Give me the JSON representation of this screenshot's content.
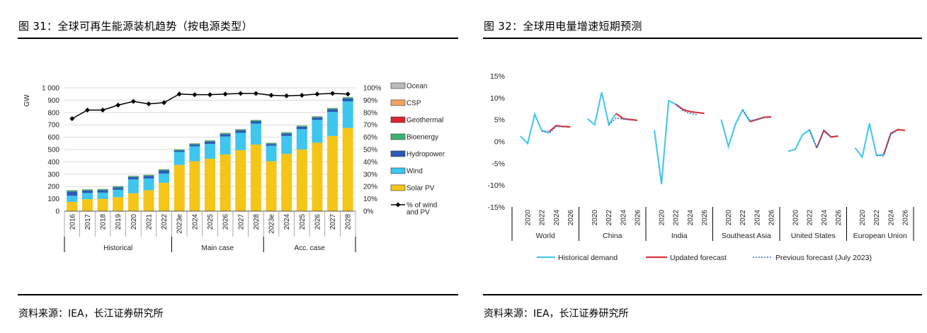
{
  "left": {
    "title": "图 31：全球可再生能源装机趋势（按电源类型）",
    "source": "资料来源：IEA，长江证券研究所"
  },
  "right": {
    "title": "图 32：全球用电量增速短期预测",
    "source": "资料来源：IEA，长江证券研究所"
  },
  "chart_data": [
    {
      "type": "bar",
      "stacked": true,
      "title": "",
      "ylabel": "GW",
      "ylim": [
        0,
        1000
      ],
      "yticks": [
        "0",
        "100",
        "200",
        "300",
        "400",
        "500",
        "600",
        "700",
        "800",
        "900",
        "1 000"
      ],
      "y2lim": [
        0,
        100
      ],
      "y2ticks": [
        "0%",
        "10%",
        "20%",
        "30%",
        "40%",
        "50%",
        "60%",
        "70%",
        "80%",
        "90%",
        "100%"
      ],
      "categories": [
        "2016",
        "2017",
        "2018",
        "2019",
        "2020",
        "2021",
        "2022",
        "2023e",
        "2024",
        "2025",
        "2026",
        "2027",
        "2028",
        "2023e",
        "2024",
        "2025",
        "2026",
        "2027",
        "2028"
      ],
      "groups": [
        {
          "label": "Historical",
          "count": 7
        },
        {
          "label": "Main case",
          "count": 6
        },
        {
          "label": "Acc. case",
          "count": 6
        }
      ],
      "series": [
        {
          "name": "Solar PV",
          "color": "#F5C518",
          "values": [
            75,
            97,
            100,
            113,
            145,
            170,
            230,
            375,
            405,
            425,
            460,
            495,
            540,
            405,
            465,
            500,
            555,
            610,
            675
          ]
        },
        {
          "name": "Wind",
          "color": "#3EC6EE",
          "values": [
            50,
            50,
            50,
            60,
            112,
            95,
            75,
            105,
            120,
            120,
            145,
            140,
            170,
            125,
            145,
            165,
            185,
            195,
            215
          ]
        },
        {
          "name": "Hydropower",
          "color": "#2A5CB8",
          "values": [
            35,
            20,
            20,
            20,
            20,
            20,
            25,
            12,
            15,
            20,
            20,
            20,
            20,
            15,
            20,
            20,
            20,
            22,
            25
          ]
        },
        {
          "name": "Bioenergy",
          "color": "#3CB371",
          "values": [
            8,
            8,
            8,
            8,
            8,
            8,
            8,
            8,
            8,
            8,
            8,
            8,
            8,
            8,
            8,
            8,
            8,
            8,
            8
          ]
        },
        {
          "name": "Geothermal",
          "color": "#D8272E",
          "values": [
            1,
            1,
            1,
            1,
            1,
            1,
            1,
            1,
            1,
            1,
            1,
            1,
            1,
            1,
            1,
            1,
            1,
            1,
            1
          ]
        },
        {
          "name": "CSP",
          "color": "#F4A460",
          "values": [
            1,
            1,
            1,
            1,
            1,
            1,
            1,
            1,
            1,
            1,
            1,
            1,
            1,
            1,
            1,
            1,
            1,
            1,
            1
          ]
        },
        {
          "name": "Ocean",
          "color": "#BBBBBB",
          "values": [
            1,
            1,
            1,
            1,
            1,
            1,
            1,
            1,
            1,
            1,
            1,
            1,
            1,
            1,
            1,
            1,
            1,
            1,
            1
          ]
        }
      ],
      "line": {
        "name": "% of wind\nand PV",
        "axis": "right",
        "color": "#000000",
        "values": [
          75,
          82,
          82,
          86,
          89,
          87,
          88,
          95,
          94.5,
          94.5,
          95,
          95.5,
          95.5,
          94,
          93.5,
          94,
          95,
          95.5,
          95
        ]
      },
      "legend_order": [
        "Ocean",
        "CSP",
        "Geothermal",
        "Bioenergy",
        "Hydropower",
        "Wind",
        "Solar PV",
        "% of wind\nand PV"
      ],
      "legend_position": "right"
    },
    {
      "type": "line",
      "title": "",
      "ylim": [
        -15,
        15
      ],
      "yticks": [
        "15%",
        "10%",
        "5%",
        "0%",
        "-5%",
        "-10%",
        "-15%"
      ],
      "tick_labels": [
        "2020",
        "2022",
        "2024",
        "2026"
      ],
      "regions": [
        {
          "name": "World",
          "historical": [
            [
              2019,
              1.2
            ],
            [
              2020,
              -0.5
            ],
            [
              2021,
              6.2
            ],
            [
              2022,
              2.4
            ],
            [
              2023,
              2.2
            ]
          ],
          "updated": [
            [
              2023,
              2.2
            ],
            [
              2024,
              3.6
            ],
            [
              2025,
              3.4
            ],
            [
              2026,
              3.3
            ]
          ],
          "previous": [
            [
              2022,
              2.4
            ],
            [
              2023,
              1.8
            ],
            [
              2024,
              3.4
            ],
            [
              2025,
              3.3
            ]
          ]
        },
        {
          "name": "China",
          "historical": [
            [
              2019,
              5.2
            ],
            [
              2020,
              3.8
            ],
            [
              2021,
              11.2
            ],
            [
              2022,
              3.8
            ],
            [
              2023,
              6.4
            ]
          ],
          "updated": [
            [
              2023,
              6.4
            ],
            [
              2024,
              5.2
            ],
            [
              2025,
              5.0
            ],
            [
              2026,
              4.8
            ]
          ],
          "previous": [
            [
              2022,
              3.8
            ],
            [
              2023,
              5.3
            ],
            [
              2024,
              5.1
            ],
            [
              2025,
              4.9
            ]
          ]
        },
        {
          "name": "India",
          "historical": [
            [
              2019,
              2.6
            ],
            [
              2020,
              -9.8
            ],
            [
              2021,
              9.3
            ],
            [
              2022,
              8.5
            ]
          ],
          "updated": [
            [
              2022,
              8.5
            ],
            [
              2023,
              7.3
            ],
            [
              2024,
              6.8
            ],
            [
              2025,
              6.6
            ],
            [
              2026,
              6.4
            ]
          ],
          "previous": [
            [
              2022,
              8.5
            ],
            [
              2023,
              7.0
            ],
            [
              2024,
              6.4
            ],
            [
              2025,
              6.1
            ]
          ]
        },
        {
          "name": "Southeast Asia",
          "historical": [
            [
              2019,
              5.0
            ],
            [
              2020,
              -1.2
            ],
            [
              2021,
              4.0
            ],
            [
              2022,
              7.2
            ],
            [
              2023,
              4.5
            ]
          ],
          "updated": [
            [
              2023,
              4.5
            ],
            [
              2024,
              5.0
            ],
            [
              2025,
              5.5
            ],
            [
              2026,
              5.6
            ]
          ],
          "previous": [
            [
              2022,
              7.2
            ],
            [
              2023,
              4.8
            ],
            [
              2024,
              5.0
            ],
            [
              2025,
              5.4
            ]
          ]
        },
        {
          "name": "United States",
          "historical": [
            [
              2019,
              -2.3
            ],
            [
              2020,
              -1.8
            ],
            [
              2021,
              1.5
            ],
            [
              2022,
              2.6
            ],
            [
              2023,
              -1.5
            ]
          ],
          "updated": [
            [
              2023,
              -1.5
            ],
            [
              2024,
              2.5
            ],
            [
              2025,
              1.0
            ],
            [
              2026,
              1.2
            ]
          ],
          "previous": [
            [
              2022,
              2.6
            ],
            [
              2023,
              -1.6
            ],
            [
              2024,
              2.3
            ],
            [
              2025,
              1.0
            ]
          ]
        },
        {
          "name": "European Union",
          "historical": [
            [
              2019,
              -1.5
            ],
            [
              2020,
              -3.6
            ],
            [
              2021,
              4.1
            ],
            [
              2022,
              -3.2
            ],
            [
              2023,
              -3.1
            ]
          ],
          "updated": [
            [
              2023,
              -3.1
            ],
            [
              2024,
              1.8
            ],
            [
              2025,
              2.7
            ],
            [
              2026,
              2.5
            ]
          ],
          "previous": [
            [
              2022,
              -3.2
            ],
            [
              2023,
              -3.3
            ],
            [
              2024,
              1.6
            ],
            [
              2025,
              2.6
            ]
          ]
        }
      ],
      "legend": [
        {
          "name": "Historical demand",
          "color": "#4DC8EA",
          "style": "solid"
        },
        {
          "name": "Updated forecast",
          "color": "#D8343A",
          "style": "solid"
        },
        {
          "name": "Previous forecast (July 2023)",
          "color": "#3A6FC4",
          "style": "dotted"
        }
      ],
      "legend_position": "bottom"
    }
  ]
}
